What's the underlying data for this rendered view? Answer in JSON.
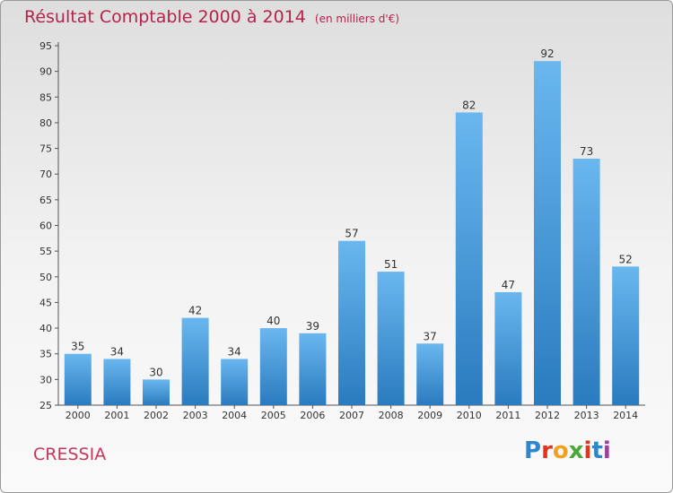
{
  "header": {
    "title": "Résultat Comptable 2000 à 2014",
    "unit": "(en milliers d'€)"
  },
  "footer": {
    "place": "CRESSIA",
    "logo_letters": [
      "P",
      "r",
      "o",
      "x",
      "i",
      "t",
      "i"
    ]
  },
  "colors": {
    "title": "#b5234a",
    "bar_top": "#6ab7ef",
    "bar_bottom": "#2a7bbf",
    "logo": [
      "#2f86c8",
      "#e8331c",
      "#f2a11f",
      "#4aa83a",
      "#e8331c",
      "#2f86c8",
      "#9c3fa0"
    ]
  },
  "chart_data": {
    "type": "bar",
    "title": "Résultat Comptable 2000 à 2014",
    "ylabel": "(en milliers d'€)",
    "categories": [
      "2000",
      "2001",
      "2002",
      "2003",
      "2004",
      "2005",
      "2006",
      "2007",
      "2008",
      "2009",
      "2010",
      "2011",
      "2012",
      "2013",
      "2014"
    ],
    "values": [
      35,
      34,
      30,
      42,
      34,
      40,
      39,
      57,
      51,
      37,
      82,
      47,
      92,
      73,
      52
    ],
    "ylim": [
      25,
      95
    ],
    "yticks": [
      25,
      30,
      35,
      40,
      45,
      50,
      55,
      60,
      65,
      70,
      75,
      80,
      85,
      90,
      95
    ],
    "grid": false,
    "legend": "none"
  }
}
